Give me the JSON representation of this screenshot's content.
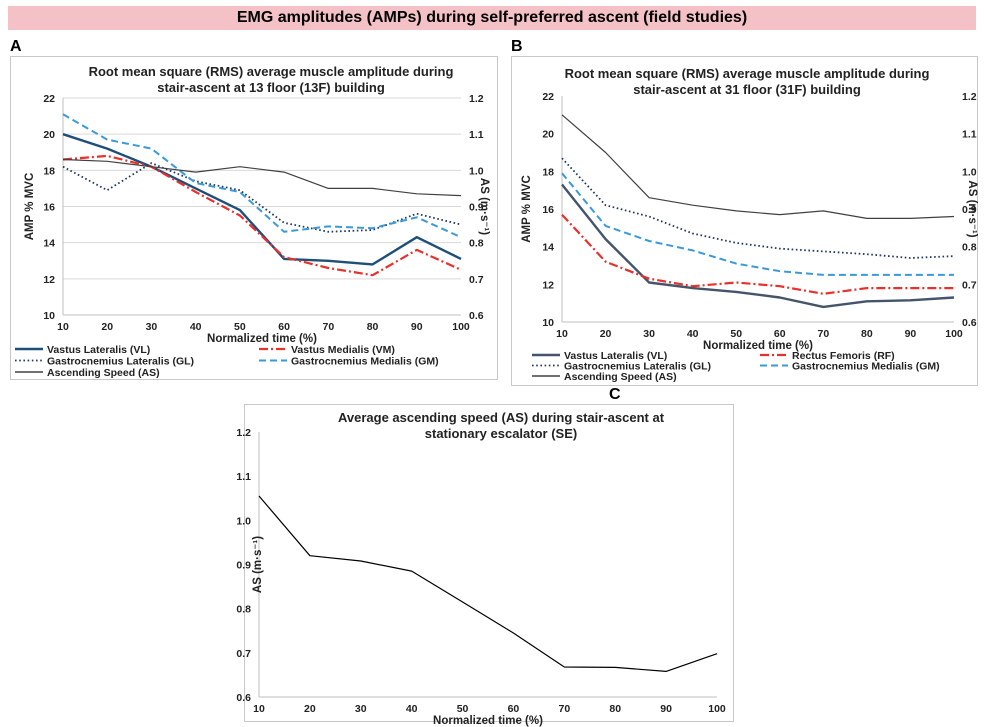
{
  "banner_title": "EMG amplitudes (AMPs) during self-preferred ascent (field studies)",
  "chart_data": [
    {
      "panel": "A",
      "type": "line",
      "title": [
        "Root mean square (RMS) average muscle amplitude during",
        "stair-ascent at 13 floor (13F) building"
      ],
      "xlabel": "Normalized time (%)",
      "ylabel": "AMP % MVC",
      "y2label": "AS (m·s⁻¹)",
      "x": [
        10,
        20,
        30,
        40,
        50,
        60,
        70,
        80,
        90,
        100
      ],
      "xlim": [
        10,
        100
      ],
      "ylim": [
        10,
        22
      ],
      "yticks": [
        10,
        12,
        14,
        16,
        18,
        20,
        22
      ],
      "y2lim": [
        0.6,
        1.2
      ],
      "y2ticks": [
        "0.6",
        "0.7",
        "0.8",
        "0.9",
        "1.0",
        "1.1",
        "1.2"
      ],
      "grid": "horizontal",
      "legend_position": "bottom",
      "series": [
        {
          "name": "Vastus Lateralis (VL)",
          "axis": "left",
          "color": "#1f4e79",
          "style": "solid",
          "width": 2.4,
          "values": [
            20.0,
            19.2,
            18.2,
            17.0,
            15.8,
            13.1,
            13.0,
            12.8,
            14.3,
            13.1
          ]
        },
        {
          "name": "Vastus Medialis (VM)",
          "axis": "left",
          "color": "#e8302c",
          "style": "dashdot",
          "width": 2.2,
          "values": [
            18.6,
            18.8,
            18.2,
            16.8,
            15.5,
            13.2,
            12.6,
            12.2,
            13.6,
            12.5
          ]
        },
        {
          "name": "Gastrocnemius Lateralis (GL)",
          "axis": "left",
          "color": "#1f3864",
          "style": "dotted",
          "width": 1.8,
          "values": [
            18.2,
            16.9,
            18.4,
            17.4,
            16.9,
            15.1,
            14.6,
            14.7,
            15.6,
            15.0
          ]
        },
        {
          "name": "Gastrocnemius Medialis (GM)",
          "axis": "left",
          "color": "#3a9ad9",
          "style": "dashed",
          "width": 2.0,
          "values": [
            21.1,
            19.7,
            19.2,
            17.3,
            16.8,
            14.6,
            14.9,
            14.8,
            15.4,
            14.3
          ]
        },
        {
          "name": "Ascending Speed (AS)",
          "axis": "right",
          "color": "#404040",
          "style": "solid",
          "width": 1.2,
          "values": [
            1.03,
            1.025,
            1.01,
            0.995,
            1.01,
            0.995,
            0.95,
            0.95,
            0.935,
            0.93
          ]
        }
      ]
    },
    {
      "panel": "B",
      "type": "line",
      "title": [
        "Root mean square (RMS) average muscle amplitude during",
        "stair-ascent at 31 floor (31F) building"
      ],
      "xlabel": "Normalized time (%)",
      "ylabel": "AMP % MVC",
      "y2label": "AS (m·s⁻¹)",
      "x": [
        10,
        20,
        30,
        40,
        50,
        60,
        70,
        80,
        90,
        100
      ],
      "xlim": [
        10,
        100
      ],
      "ylim": [
        10,
        22
      ],
      "yticks": [
        10,
        12,
        14,
        16,
        18,
        20,
        22
      ],
      "y2lim": [
        0.6,
        1.2
      ],
      "y2ticks": [
        "0.6",
        "0.7",
        "0.8",
        "0.9",
        "1.0",
        "1.1",
        "1.2"
      ],
      "grid": "none",
      "legend_position": "bottom",
      "series": [
        {
          "name": "Vastus Lateralis (VL)",
          "axis": "left",
          "color": "#44546a",
          "style": "solid",
          "width": 2.4,
          "values": [
            17.3,
            14.4,
            12.1,
            11.8,
            11.6,
            11.3,
            10.8,
            11.1,
            11.15,
            11.3
          ]
        },
        {
          "name": "Rectus Femoris (RF)",
          "axis": "left",
          "color": "#e8302c",
          "style": "dashdot",
          "width": 2.2,
          "values": [
            15.7,
            13.2,
            12.3,
            11.9,
            12.1,
            11.9,
            11.5,
            11.8,
            11.8,
            11.8
          ]
        },
        {
          "name": "Gastrocnemius Lateralis (GL)",
          "axis": "left",
          "color": "#1f3864",
          "style": "dotted",
          "width": 1.8,
          "values": [
            18.7,
            16.2,
            15.6,
            14.7,
            14.2,
            13.9,
            13.75,
            13.6,
            13.4,
            13.5
          ]
        },
        {
          "name": "Gastrocnemius Medialis (GM)",
          "axis": "left",
          "color": "#3a9ad9",
          "style": "dashed",
          "width": 2.0,
          "values": [
            17.9,
            15.1,
            14.3,
            13.8,
            13.1,
            12.7,
            12.5,
            12.5,
            12.5,
            12.5
          ]
        },
        {
          "name": "Ascending Speed (AS)",
          "axis": "right",
          "color": "#404040",
          "style": "solid",
          "width": 1.2,
          "values": [
            1.15,
            1.05,
            0.93,
            0.91,
            0.895,
            0.885,
            0.895,
            0.875,
            0.875,
            0.88
          ]
        }
      ]
    },
    {
      "panel": "C",
      "type": "line",
      "title": [
        "Average ascending speed (AS) during stair-ascent at",
        "stationary escalator (SE)"
      ],
      "xlabel": "Normalized time (%)",
      "ylabel": "AS (m·s⁻¹)",
      "x": [
        10,
        20,
        30,
        40,
        50,
        60,
        70,
        80,
        90,
        100
      ],
      "xlim": [
        10,
        100
      ],
      "ylim": [
        0.6,
        1.2
      ],
      "yticks": [
        "0.6",
        "0.7",
        "0.8",
        "0.9",
        "1.0",
        "1.1",
        "1.2"
      ],
      "grid": "none",
      "series": [
        {
          "name": "",
          "axis": "left",
          "color": "#000000",
          "style": "solid",
          "width": 1.2,
          "values": [
            1.055,
            0.92,
            0.908,
            0.885,
            0.815,
            0.745,
            0.668,
            0.667,
            0.658,
            0.698
          ]
        }
      ]
    }
  ]
}
